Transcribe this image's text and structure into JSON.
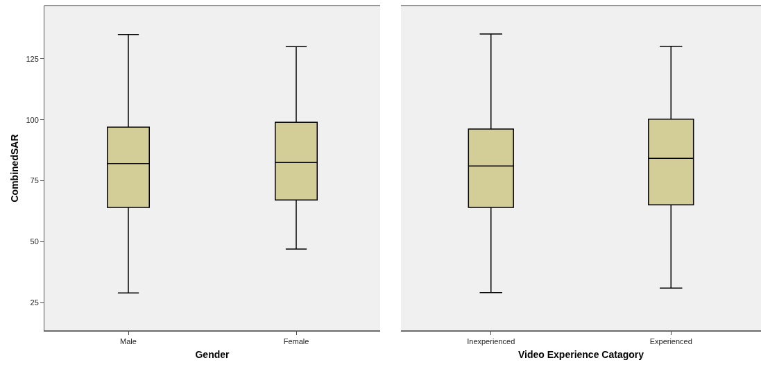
{
  "chart_data": [
    {
      "type": "box",
      "xlabel": "Gender",
      "ylabel": "CombinedSAR",
      "categories": [
        "Male",
        "Female"
      ],
      "ylim": [
        13.4,
        146.9
      ],
      "yticks": [
        25,
        50,
        75,
        100,
        125
      ],
      "series": [
        {
          "color": "#d3cd98",
          "boxes": [
            {
              "low": 29,
              "q1": 64.1,
              "median": 82.1,
              "q3": 97,
              "high": 135
            },
            {
              "low": 47,
              "q1": 67.1,
              "median": 82.5,
              "q3": 99,
              "high": 130
            }
          ]
        }
      ]
    },
    {
      "type": "box",
      "xlabel": "Video Experience Catagory",
      "categories": [
        "Inexperienced",
        "Experienced"
      ],
      "ylim": [
        13.4,
        146.9
      ],
      "tick_labels": "x",
      "series": [
        {
          "color": "#d3cd98",
          "boxes": [
            {
              "low": 29.1,
              "q1": 64.1,
              "median": 81.1,
              "q3": 96.2,
              "high": 135.2
            },
            {
              "low": 31,
              "q1": 65.1,
              "median": 84.2,
              "q3": 100.3,
              "high": 130.2
            }
          ]
        }
      ]
    }
  ]
}
